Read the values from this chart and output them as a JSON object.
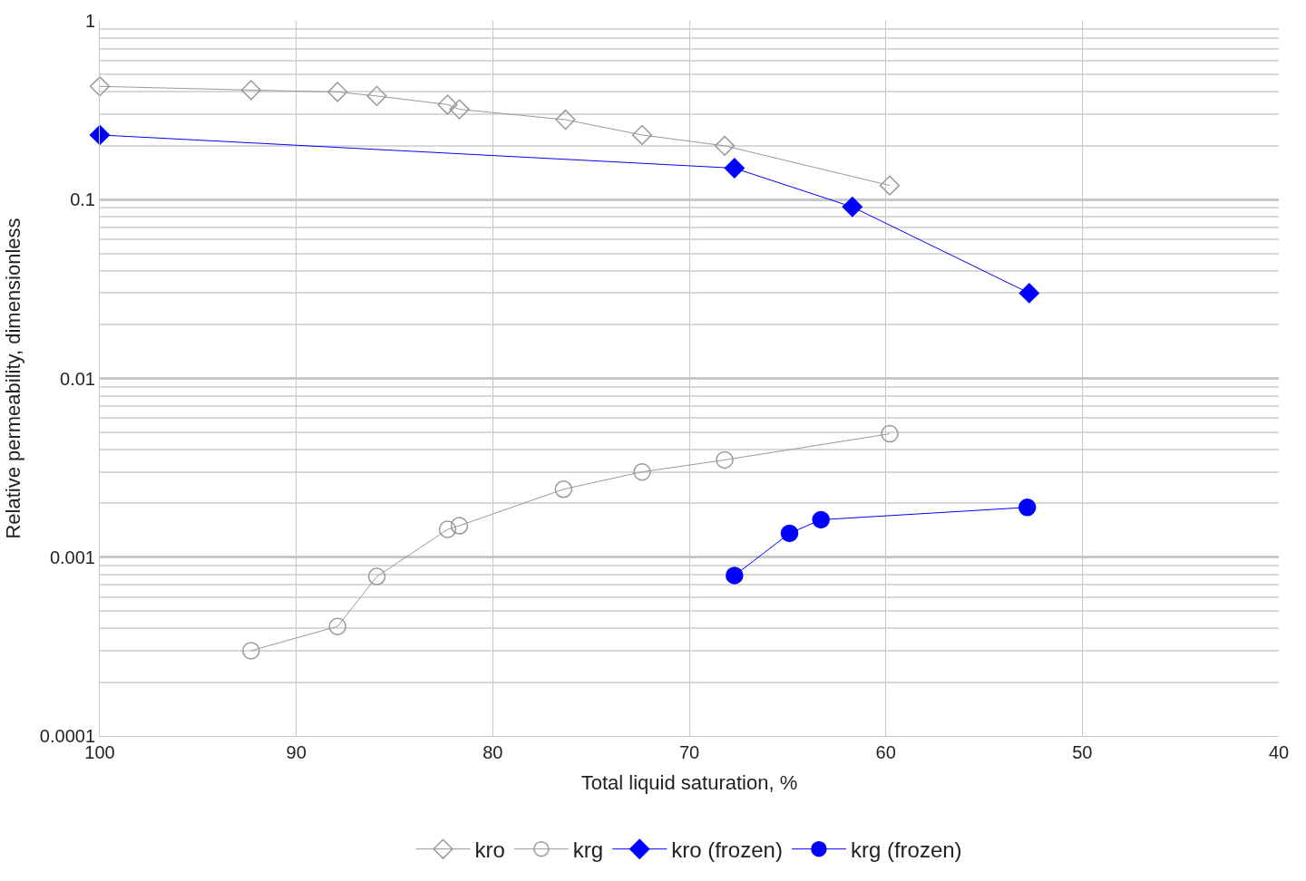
{
  "chart_data": {
    "type": "line",
    "xlabel": "Total liquid saturation, %",
    "ylabel": "Relative permeability, dimensionless",
    "log": "y",
    "grid": true,
    "legend": "bottom",
    "xlim": [
      100,
      40
    ],
    "xticks": [
      100,
      90,
      80,
      70,
      60,
      50,
      40
    ],
    "ylim": [
      0.0001,
      1
    ],
    "yticks": [
      0.0001,
      0.001,
      0.01,
      0.1,
      1
    ],
    "series": [
      {
        "name": "kro",
        "color": "#999999",
        "marker": "diamond",
        "x": [
          100,
          92.3,
          87.9,
          85.9,
          82.3,
          81.7,
          76.3,
          72.4,
          68.2,
          59.8
        ],
        "values": [
          0.43,
          0.41,
          0.4,
          0.38,
          0.34,
          0.32,
          0.28,
          0.23,
          0.2,
          0.12
        ]
      },
      {
        "name": "krg",
        "color": "#999999",
        "marker": "circle",
        "x": [
          92.3,
          87.9,
          85.9,
          82.3,
          81.7,
          76.4,
          72.4,
          68.2,
          59.8
        ],
        "values": [
          0.0003,
          0.00041,
          0.00078,
          0.00143,
          0.0015,
          0.0024,
          0.003,
          0.0035,
          0.0049
        ]
      },
      {
        "name": "kro (frozen)",
        "color": "#0000ff",
        "marker": "diamond",
        "x": [
          100,
          67.7,
          61.7,
          52.7
        ],
        "values": [
          0.23,
          0.15,
          0.091,
          0.03
        ]
      },
      {
        "name": "krg (frozen)",
        "color": "#0000ff",
        "marker": "circle",
        "x": [
          67.7,
          64.9,
          63.3,
          52.8
        ],
        "values": [
          0.00079,
          0.00136,
          0.00162,
          0.0019
        ]
      }
    ]
  }
}
